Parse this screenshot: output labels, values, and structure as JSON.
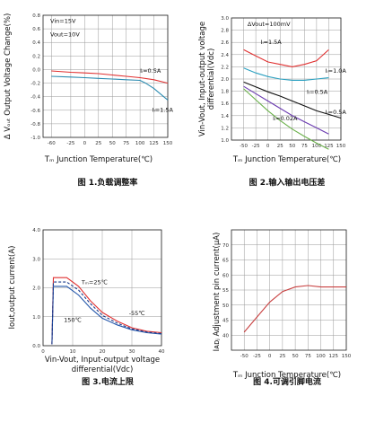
{
  "chart_data": [
    {
      "type": "line",
      "caption": "图 1.负载调整率",
      "xlabel": "Tₘ Junction Temperature(℃)",
      "ylabel": "Δ Vₒᵤₜ Output Voltage Change(%)",
      "xlim": [
        -75,
        150
      ],
      "ylim": [
        -1.0,
        0.8
      ],
      "xticks": [
        -60,
        -25,
        0,
        25,
        50,
        75,
        100,
        125,
        150
      ],
      "yticks": [
        0.8,
        0.6,
        0.4,
        0.2,
        0.0,
        -0.2,
        -0.4,
        -0.6,
        -0.8,
        -1.0
      ],
      "grid": true,
      "annotations": [
        {
          "text": "Vin=15V",
          "x": -62,
          "y": 0.69
        },
        {
          "text": "Vout=10V",
          "x": -62,
          "y": 0.49
        },
        {
          "text": "Iₗ=0.5A",
          "x": 100,
          "y": -0.05
        },
        {
          "text": "Iₗ=1.5A",
          "x": 122,
          "y": -0.62
        }
      ],
      "series": [
        {
          "name": "Iₗ=0.5A",
          "color": "#e03030",
          "x": [
            -60,
            -25,
            0,
            25,
            50,
            75,
            100,
            125,
            150
          ],
          "y": [
            -0.02,
            -0.04,
            -0.05,
            -0.06,
            -0.08,
            -0.1,
            -0.12,
            -0.15,
            -0.2
          ]
        },
        {
          "name": "Iₗ=1.5A",
          "color": "#2a8ab0",
          "x": [
            -60,
            -25,
            0,
            25,
            50,
            75,
            100,
            110,
            125,
            150
          ],
          "y": [
            -0.1,
            -0.11,
            -0.12,
            -0.13,
            -0.14,
            -0.15,
            -0.16,
            -0.2,
            -0.28,
            -0.45
          ]
        }
      ]
    },
    {
      "type": "line",
      "caption": "图 2.输入输出电压差",
      "xlabel": "Tₘ Junction Temperature(℃)",
      "ylabel": "Vin-Vout, Input-output voltage differential(Vdc)",
      "xlim": [
        -75,
        150
      ],
      "ylim": [
        1.0,
        3.0
      ],
      "xticks": [
        -50,
        -25,
        0,
        25,
        50,
        75,
        100,
        125,
        150
      ],
      "yticks": [
        3.0,
        2.8,
        2.6,
        2.4,
        2.2,
        2.0,
        1.8,
        1.6,
        1.4,
        1.2,
        1.0
      ],
      "grid": true,
      "annotations": [
        {
          "text": "ΔVout=100mV",
          "x": -42,
          "y": 2.87
        },
        {
          "text": "Iₗ=1.5A",
          "x": -15,
          "y": 2.57
        },
        {
          "text": "Iₗ=1.0A",
          "x": 118,
          "y": 2.1
        },
        {
          "text": "Iₗ=0.5A",
          "x": 80,
          "y": 1.76
        },
        {
          "text": "Iₗ=0.5A",
          "x": 118,
          "y": 1.43
        },
        {
          "text": "Iₗ=0.02A",
          "x": 10,
          "y": 1.32
        }
      ],
      "series": [
        {
          "name": "Iₗ=1.5A",
          "color": "#e03030",
          "x": [
            -50,
            -25,
            0,
            25,
            50,
            75,
            100,
            125
          ],
          "y": [
            2.48,
            2.38,
            2.28,
            2.24,
            2.2,
            2.24,
            2.3,
            2.48
          ]
        },
        {
          "name": "Iₗ=1.0A",
          "color": "#2aa0c0",
          "x": [
            -50,
            -25,
            0,
            25,
            50,
            75,
            100,
            125
          ],
          "y": [
            2.18,
            2.1,
            2.04,
            2.0,
            1.98,
            1.98,
            2.0,
            2.02
          ]
        },
        {
          "name": "Iₗ=0.5A",
          "color": "#111111",
          "x": [
            -50,
            -25,
            0,
            25,
            50,
            75,
            100,
            125,
            150
          ],
          "y": [
            1.95,
            1.87,
            1.79,
            1.72,
            1.64,
            1.56,
            1.48,
            1.42,
            1.36
          ]
        },
        {
          "name": "Iₗ=0.5A",
          "color": "#6a3ab0",
          "x": [
            -50,
            -25,
            0,
            25,
            50,
            75,
            100,
            125
          ],
          "y": [
            1.88,
            1.76,
            1.64,
            1.52,
            1.4,
            1.3,
            1.2,
            1.1
          ]
        },
        {
          "name": "Iₗ=0.02A",
          "color": "#6ab04a",
          "x": [
            -50,
            -25,
            0,
            25,
            50,
            75,
            100,
            125
          ],
          "y": [
            1.84,
            1.66,
            1.48,
            1.32,
            1.18,
            1.06,
            0.95,
            0.85
          ]
        }
      ]
    },
    {
      "type": "line",
      "caption": "图 3.电流上限",
      "xlabel": "Vin-Vout, Input-output voltage differential(Vdc)",
      "ylabel": "Iout,output current(A)",
      "xlim": [
        0,
        40
      ],
      "ylim": [
        0,
        4.0
      ],
      "xticks": [
        0,
        10,
        20,
        30,
        40
      ],
      "yticks": [
        4.0,
        3.0,
        2.0,
        1.0,
        0
      ],
      "grid": true,
      "annotations": [
        {
          "text": "Tₘ=25℃",
          "x": 13,
          "y": 2.12
        },
        {
          "text": "-55℃",
          "x": 29,
          "y": 1.05
        },
        {
          "text": "150℃",
          "x": 7,
          "y": 0.82
        }
      ],
      "series": [
        {
          "name": "Tₘ=25℃",
          "color": "#e03030",
          "dash": "",
          "x": [
            3,
            3.5,
            8,
            12,
            16,
            20,
            25,
            30,
            35,
            40
          ],
          "y": [
            0.05,
            2.35,
            2.35,
            2.05,
            1.55,
            1.15,
            0.85,
            0.62,
            0.5,
            0.45
          ]
        },
        {
          "name": "150℃",
          "color": "#2255aa",
          "dash": "",
          "x": [
            3,
            3.5,
            8,
            12,
            16,
            20,
            25,
            30,
            35,
            40
          ],
          "y": [
            0.05,
            2.05,
            2.05,
            1.75,
            1.3,
            0.95,
            0.72,
            0.55,
            0.45,
            0.4
          ]
        },
        {
          "name": "-55℃",
          "color": "#1a3a8a",
          "dash": "3,2",
          "x": [
            3,
            3.5,
            8,
            12,
            16,
            20,
            25,
            30,
            35,
            40
          ],
          "y": [
            0.05,
            2.2,
            2.2,
            1.92,
            1.45,
            1.05,
            0.78,
            0.58,
            0.47,
            0.42
          ]
        }
      ]
    },
    {
      "type": "line",
      "caption": "图 4.可调引脚电流",
      "xlabel": "Tₘ Junction Temperature(℃)",
      "ylabel": "Iᴀᴅⱼ Adjustment pin current(μA)",
      "xlim": [
        -75,
        150
      ],
      "ylim": [
        35,
        75
      ],
      "xticks": [
        -50,
        -25,
        0,
        25,
        50,
        75,
        100,
        125,
        150
      ],
      "yticks": [
        70,
        65,
        60,
        55,
        50,
        45,
        40
      ],
      "grid": true,
      "annotations": [],
      "series": [
        {
          "name": "",
          "color": "#c84040",
          "x": [
            -50,
            -25,
            0,
            25,
            50,
            75,
            100,
            125,
            150
          ],
          "y": [
            41,
            46,
            51,
            54.5,
            56,
            56.5,
            56,
            56,
            56
          ]
        }
      ]
    }
  ]
}
